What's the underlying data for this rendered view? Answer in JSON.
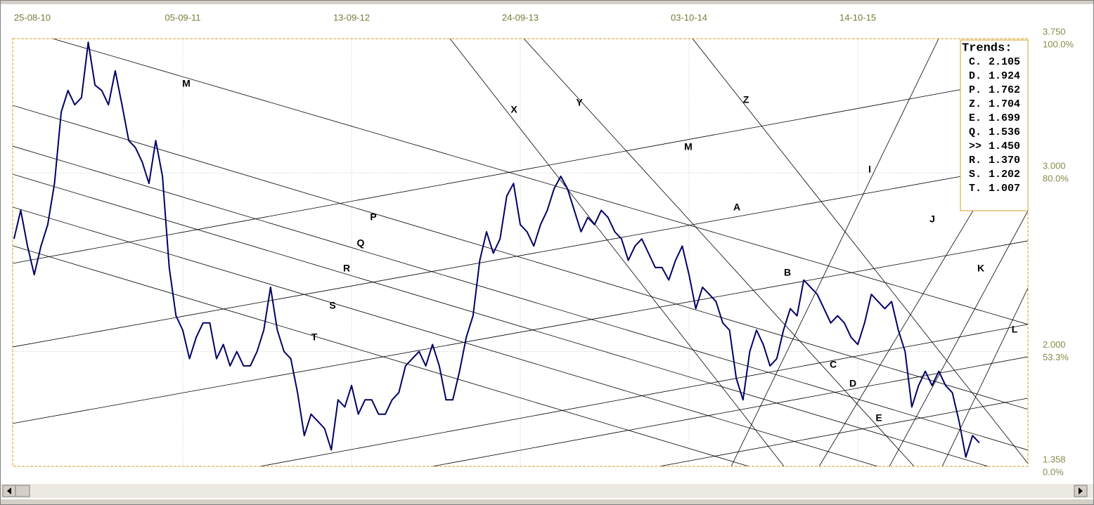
{
  "chart_data": {
    "type": "line",
    "color": "#000066",
    "xlim": [
      -0.4,
      300.4
    ],
    "xticks": [
      {
        "value": 0,
        "label": "25-08-10"
      },
      {
        "value": 50,
        "label": "05-09-11"
      },
      {
        "value": 100,
        "label": "13-09-12"
      },
      {
        "value": 150,
        "label": "24-09-13"
      },
      {
        "value": 200,
        "label": "03-10-14"
      },
      {
        "value": 250,
        "label": "14-10-15"
      }
    ],
    "ylim": [
      1.358,
      3.75
    ],
    "yticks": [
      {
        "value": 3.75,
        "label": "3.750"
      },
      {
        "value": 3,
        "label": "3.000"
      },
      {
        "value": 2,
        "label": "2.000"
      },
      {
        "value": 1.358,
        "label": "1.358"
      }
    ],
    "ytick_percent_labels": [
      "100.0%",
      "80.0%",
      "53.3%",
      "0.0%"
    ],
    "grid": true,
    "x": [
      0,
      2,
      4,
      6,
      8,
      10,
      12,
      14,
      16,
      18,
      20,
      22,
      24,
      26,
      28,
      30,
      32,
      34,
      36,
      38,
      40,
      42,
      44,
      46,
      48,
      50,
      52,
      54,
      56,
      58,
      60,
      62,
      64,
      66,
      68,
      70,
      72,
      74,
      76,
      78,
      80,
      82,
      84,
      86,
      88,
      90,
      92,
      94,
      96,
      98,
      100,
      102,
      104,
      106,
      108,
      110,
      112,
      114,
      116,
      118,
      120,
      122,
      124,
      126,
      128,
      130,
      132,
      134,
      136,
      138,
      140,
      142,
      144,
      146,
      148,
      150,
      152,
      154,
      156,
      158,
      160,
      162,
      164,
      166,
      168,
      170,
      172,
      174,
      176,
      178,
      180,
      182,
      184,
      186,
      188,
      190,
      192,
      194,
      196,
      198,
      200,
      202,
      204,
      206,
      208,
      210,
      212,
      214,
      216,
      218,
      220,
      222,
      224,
      226,
      228,
      230,
      232,
      234,
      236,
      238,
      240,
      242,
      244,
      246,
      248,
      250,
      252,
      254,
      256,
      258,
      260,
      262,
      264,
      266,
      268,
      270,
      272,
      274,
      276,
      278,
      280,
      282,
      284,
      286
    ],
    "values": [
      2.63,
      2.79,
      2.59,
      2.43,
      2.59,
      2.71,
      2.94,
      3.34,
      3.46,
      3.38,
      3.42,
      3.73,
      3.49,
      3.46,
      3.38,
      3.57,
      3.38,
      3.18,
      3.14,
      3.06,
      2.94,
      3.18,
      2.98,
      2.47,
      2.2,
      2.12,
      1.96,
      2.08,
      2.16,
      2.16,
      1.96,
      2.04,
      1.92,
      2.0,
      1.92,
      1.92,
      2.0,
      2.12,
      2.36,
      2.12,
      2.0,
      1.96,
      1.77,
      1.53,
      1.65,
      1.61,
      1.57,
      1.45,
      1.73,
      1.69,
      1.81,
      1.65,
      1.73,
      1.73,
      1.65,
      1.65,
      1.73,
      1.77,
      1.92,
      1.96,
      2.0,
      1.92,
      2.04,
      1.92,
      1.73,
      1.73,
      1.89,
      2.08,
      2.2,
      2.51,
      2.67,
      2.55,
      2.63,
      2.87,
      2.94,
      2.71,
      2.67,
      2.59,
      2.71,
      2.79,
      2.91,
      2.98,
      2.91,
      2.79,
      2.67,
      2.75,
      2.71,
      2.79,
      2.75,
      2.67,
      2.63,
      2.51,
      2.59,
      2.63,
      2.55,
      2.47,
      2.47,
      2.4,
      2.51,
      2.59,
      2.43,
      2.24,
      2.36,
      2.32,
      2.28,
      2.16,
      2.12,
      1.85,
      1.73,
      2.0,
      2.12,
      2.04,
      1.92,
      1.96,
      2.12,
      2.24,
      2.2,
      2.4,
      2.36,
      2.32,
      2.24,
      2.16,
      2.2,
      2.16,
      2.08,
      2.04,
      2.16,
      2.32,
      2.28,
      2.24,
      2.28,
      2.12,
      2.0,
      1.69,
      1.81,
      1.89,
      1.81,
      1.89,
      1.81,
      1.77,
      1.61,
      1.41,
      1.53,
      1.49
    ],
    "trend_lines": [
      {
        "label": "M",
        "x": [
          11.46,
          300.42
        ],
        "y": [
          3.75,
          2.152
        ]
      },
      {
        "label": "P",
        "x": [
          -0.42,
          300.42
        ],
        "y": [
          3.377,
          1.677
        ]
      },
      {
        "label": "Q",
        "x": [
          -0.42,
          300.42
        ],
        "y": [
          3.149,
          1.449
        ]
      },
      {
        "label": "R",
        "x": [
          -0.42,
          288.54
        ],
        "y": [
          2.992,
          1.358
        ]
      },
      {
        "label": "S",
        "x": [
          -0.42,
          255.83
        ],
        "y": [
          2.808,
          1.358
        ]
      },
      {
        "label": "T",
        "x": [
          -0.42,
          217.71
        ],
        "y": [
          2.592,
          1.358
        ]
      },
      {
        "label": "M",
        "x": [
          -0.42,
          300.42
        ],
        "y": [
          2.493,
          3.534
        ]
      },
      {
        "label": "A",
        "x": [
          -0.42,
          300.42
        ],
        "y": [
          2.026,
          3.047
        ]
      },
      {
        "label": "B",
        "x": [
          -0.42,
          300.42
        ],
        "y": [
          1.598,
          2.619
        ]
      },
      {
        "label": "C",
        "x": [
          72.92,
          300.42
        ],
        "y": [
          1.358,
          2.152
        ]
      },
      {
        "label": "D",
        "x": [
          123.96,
          300.42
        ],
        "y": [
          1.358,
          1.971
        ]
      },
      {
        "label": "E",
        "x": [
          191.25,
          300.42
        ],
        "y": [
          1.358,
          1.739
        ]
      },
      {
        "label": "X",
        "x": [
          129.17,
          228.13
        ],
        "y": [
          3.75,
          1.358
        ]
      },
      {
        "label": "Y",
        "x": [
          151.04,
          266.67
        ],
        "y": [
          3.75,
          1.358
        ]
      },
      {
        "label": "Z",
        "x": [
          201.04,
          300.42
        ],
        "y": [
          3.75,
          1.374
        ]
      },
      {
        "label": "I",
        "x": [
          212.5,
          273.96
        ],
        "y": [
          1.358,
          3.75
        ]
      },
      {
        "label": "J",
        "x": [
          238.54,
          300.42
        ],
        "y": [
          1.358,
          3.298
        ]
      },
      {
        "label": "K",
        "x": [
          259.38,
          300.42
        ],
        "y": [
          1.358,
          2.788
        ]
      },
      {
        "label": "L",
        "x": [
          275,
          300.42
        ],
        "y": [
          1.358,
          2.356
        ]
      }
    ],
    "trends": {
      "title": "Trends:",
      "rows": [
        [
          "C.",
          "2.105"
        ],
        [
          "D.",
          "1.924"
        ],
        [
          "P.",
          "1.762"
        ],
        [
          "Z.",
          "1.704"
        ],
        [
          "E.",
          "1.699"
        ],
        [
          "Q.",
          "1.536"
        ],
        [
          ">>",
          "1.450"
        ],
        [
          "R.",
          "1.370"
        ],
        [
          "S.",
          "1.202"
        ],
        [
          "T.",
          "1.007"
        ]
      ]
    }
  }
}
